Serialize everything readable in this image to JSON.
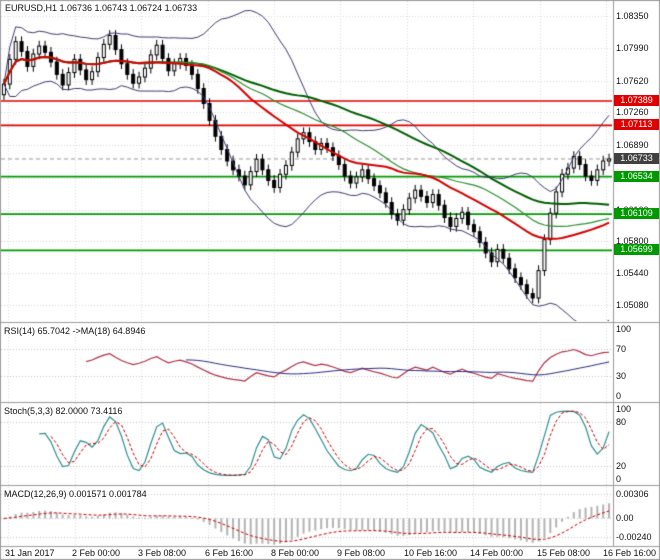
{
  "header": {
    "legend": "EURUSD,H1 1.06736 1.06743 1.06724 1.06733",
    "symbol": "EURUSD",
    "period": "H1",
    "open": "1.06736",
    "high": "1.06743",
    "low": "1.06724",
    "close": "1.06733"
  },
  "price_axis": {
    "labels": [
      "1.08350",
      "1.07990",
      "1.07620",
      "1.07260",
      "1.06890",
      "1.06520",
      "1.06160",
      "1.05800",
      "1.05440",
      "1.05080"
    ]
  },
  "time_axis": {
    "labels": [
      "31 Jan 2017",
      "2 Feb 00:00",
      "3 Feb 08:00",
      "6 Feb 16:00",
      "8 Feb 00:00",
      "9 Feb 08:00",
      "10 Feb 16:00",
      "14 Feb 00:00",
      "15 Feb 08:00",
      "16 Feb 16:00"
    ]
  },
  "panels": {
    "rsi": {
      "legend": "RSI(14) 65.7042 ->MA(18) 64.8946",
      "levels": [
        "100",
        "70",
        "30",
        "0"
      ],
      "level_values": [
        100,
        70,
        30,
        0
      ],
      "dashed_levels": [
        70,
        30
      ]
    },
    "stoch": {
      "legend": "Stoch(5,3,3) 82.0000 73.4116",
      "levels": [
        "100",
        "80",
        "20",
        "0"
      ],
      "level_values": [
        100,
        80,
        20,
        0
      ],
      "dashed_levels": [
        80,
        20
      ]
    },
    "macd": {
      "legend": "MACD(12,26,9) 0.001571 0.001784",
      "levels": [
        "0.00306",
        "0.00",
        "-0.00240"
      ],
      "level_values": [
        0.00306,
        0,
        -0.0024
      ]
    }
  },
  "colors": {
    "background": "#ffffff",
    "grid": "#dcdcdc",
    "panel_border": "#9c9c9c",
    "candle_outline": "#000000",
    "bull": "#ffffff",
    "bear": "#000000",
    "bollinger": "#3c3c70",
    "ma_red": "#d60000",
    "ma_green_slow": "#005f00",
    "ma_green_mid": "#2f8f2f",
    "resistance": "#e00000",
    "support": "#009a00",
    "current_tag": "#404040",
    "current_line": "#9a9a9a",
    "rsi": "#b03048",
    "rsi_ma": "#2a2a80",
    "stoch_k": "#2f8f8f",
    "stoch_d": "#cc0000",
    "macd_hist": "#b4b4b4",
    "macd_signal": "#cc0000",
    "text": "#101010"
  },
  "chart_data": {
    "type": "candlestick",
    "title": "EURUSD,H1",
    "symbol": "EURUSD",
    "timeframe": "H1",
    "x_labels": [
      "31 Jan 2017",
      "2 Feb 00:00",
      "3 Feb 08:00",
      "6 Feb 16:00",
      "8 Feb 00:00",
      "9 Feb 08:00",
      "10 Feb 16:00",
      "14 Feb 00:00",
      "15 Feb 08:00",
      "16 Feb 16:00"
    ],
    "y_ticks": [
      1.0835,
      1.0799,
      1.0762,
      1.0726,
      1.0689,
      1.0652,
      1.0616,
      1.058,
      1.0544,
      1.0508
    ],
    "y_range": [
      1.049,
      1.0852
    ],
    "ohlc_current": {
      "open": 1.06736,
      "high": 1.06743,
      "low": 1.06724,
      "close": 1.06733
    },
    "current_price": {
      "label": "1.06733",
      "value": 1.06733
    },
    "horizontal_levels": [
      {
        "label": "1.07389",
        "value": 1.07389,
        "kind": "resistance"
      },
      {
        "label": "1.07113",
        "value": 1.07113,
        "kind": "resistance"
      },
      {
        "label": "1.06534",
        "value": 1.06534,
        "kind": "support"
      },
      {
        "label": "1.06109",
        "value": 1.06109,
        "kind": "support"
      },
      {
        "label": "1.05699",
        "value": 1.05699,
        "kind": "support"
      }
    ],
    "closes": [
      1.0758,
      1.0786,
      1.0806,
      1.0795,
      1.0778,
      1.0792,
      1.0801,
      1.0794,
      1.0783,
      1.0769,
      1.0757,
      1.0771,
      1.0786,
      1.0774,
      1.0763,
      1.0772,
      1.0788,
      1.0803,
      1.0813,
      1.0797,
      1.0781,
      1.0769,
      1.0759,
      1.0766,
      1.0776,
      1.0791,
      1.0802,
      1.0787,
      1.0773,
      1.0781,
      1.0787,
      1.0779,
      1.0769,
      1.0753,
      1.0736,
      1.0717,
      1.0699,
      1.0684,
      1.0671,
      1.0661,
      1.0654,
      1.0644,
      1.0659,
      1.0673,
      1.0661,
      1.0649,
      1.0641,
      1.0656,
      1.0666,
      1.0681,
      1.0696,
      1.0703,
      1.0693,
      1.0684,
      1.0691,
      1.0686,
      1.0677,
      1.0667,
      1.0654,
      1.0646,
      1.0653,
      1.0661,
      1.0651,
      1.0643,
      1.0635,
      1.0624,
      1.0611,
      1.0604,
      1.0616,
      1.0629,
      1.0638,
      1.0631,
      1.0624,
      1.0633,
      1.0621,
      1.0607,
      1.0597,
      1.0606,
      1.0613,
      1.0599,
      1.0591,
      1.0579,
      1.0567,
      1.0557,
      1.0571,
      1.0561,
      1.0549,
      1.0539,
      1.0531,
      1.0521,
      1.0516,
      1.0547,
      1.0582,
      1.0612,
      1.0636,
      1.0656,
      1.0663,
      1.0676,
      1.0667,
      1.0654,
      1.0649,
      1.0661,
      1.0671,
      1.06733
    ],
    "overlays": {
      "bollinger": {
        "period": 20,
        "deviation": 2
      },
      "ma_red": {
        "period": 24
      },
      "ma_green_slow": {
        "period": 52
      },
      "ma_green_mid": {
        "period": 34
      }
    },
    "indicators": {
      "rsi": {
        "period": 14,
        "value": 65.7042,
        "ma_period": 18,
        "ma_value": 64.8946,
        "scale": [
          100,
          70,
          30,
          0
        ],
        "range": [
          0,
          100
        ]
      },
      "stochastic": {
        "k": 5,
        "slowing": 3,
        "d": 3,
        "k_value": 82.0,
        "d_value": 73.4116,
        "scale": [
          100,
          80,
          20,
          0
        ],
        "range": [
          0,
          100
        ]
      },
      "macd": {
        "fast": 12,
        "slow": 26,
        "signal": 9,
        "macd_value": 0.001571,
        "signal_value": 0.001784,
        "scale": [
          0.00306,
          0,
          -0.0024
        ],
        "range": [
          -0.003,
          0.0036
        ]
      }
    }
  }
}
